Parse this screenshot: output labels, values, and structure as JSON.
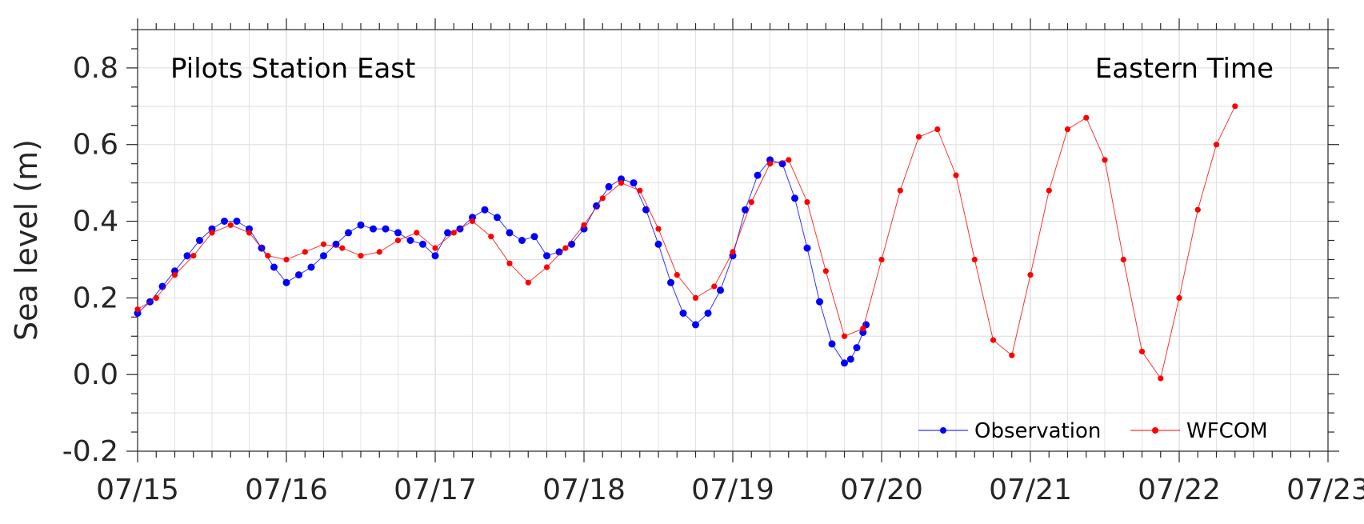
{
  "chart_data": {
    "type": "line",
    "title": "",
    "station": "Pilots Station East",
    "timezone": "Eastern Time",
    "xlabel": "",
    "ylabel": "Sea level (m)",
    "xlim": [
      "07/15",
      "07/23"
    ],
    "ylim": [
      -0.2,
      0.9
    ],
    "x_ticks": [
      "07/15",
      "07/16",
      "07/17",
      "07/18",
      "07/19",
      "07/20",
      "07/21",
      "07/22",
      "07/23"
    ],
    "y_ticks": [
      "-0.2",
      "0.0",
      "0.2",
      "0.4",
      "0.6",
      "0.8"
    ],
    "y_tick_values": [
      -0.2,
      0.0,
      0.2,
      0.4,
      0.6,
      0.8
    ],
    "grid": true,
    "legend_position": "bottom-right",
    "series": [
      {
        "name": "Observation",
        "color": "#0000ff",
        "marker": "dot",
        "points": [
          [
            "07/15 00:00",
            0.16
          ],
          [
            "07/15 02:00",
            0.19
          ],
          [
            "07/15 04:00",
            0.23
          ],
          [
            "07/15 06:00",
            0.27
          ],
          [
            "07/15 08:00",
            0.31
          ],
          [
            "07/15 10:00",
            0.35
          ],
          [
            "07/15 12:00",
            0.38
          ],
          [
            "07/15 14:00",
            0.4
          ],
          [
            "07/15 16:00",
            0.4
          ],
          [
            "07/15 18:00",
            0.38
          ],
          [
            "07/15 20:00",
            0.33
          ],
          [
            "07/15 22:00",
            0.28
          ],
          [
            "07/16 00:00",
            0.24
          ],
          [
            "07/16 02:00",
            0.26
          ],
          [
            "07/16 04:00",
            0.28
          ],
          [
            "07/16 06:00",
            0.31
          ],
          [
            "07/16 08:00",
            0.34
          ],
          [
            "07/16 10:00",
            0.37
          ],
          [
            "07/16 12:00",
            0.39
          ],
          [
            "07/16 14:00",
            0.38
          ],
          [
            "07/16 16:00",
            0.38
          ],
          [
            "07/16 18:00",
            0.37
          ],
          [
            "07/16 20:00",
            0.35
          ],
          [
            "07/16 22:00",
            0.34
          ],
          [
            "07/17 00:00",
            0.31
          ],
          [
            "07/17 02:00",
            0.37
          ],
          [
            "07/17 04:00",
            0.38
          ],
          [
            "07/17 06:00",
            0.41
          ],
          [
            "07/17 08:00",
            0.43
          ],
          [
            "07/17 10:00",
            0.41
          ],
          [
            "07/17 12:00",
            0.37
          ],
          [
            "07/17 14:00",
            0.35
          ],
          [
            "07/17 16:00",
            0.36
          ],
          [
            "07/17 18:00",
            0.31
          ],
          [
            "07/17 20:00",
            0.32
          ],
          [
            "07/17 22:00",
            0.34
          ],
          [
            "07/18 00:00",
            0.38
          ],
          [
            "07/18 02:00",
            0.44
          ],
          [
            "07/18 04:00",
            0.49
          ],
          [
            "07/18 06:00",
            0.51
          ],
          [
            "07/18 08:00",
            0.5
          ],
          [
            "07/18 10:00",
            0.43
          ],
          [
            "07/18 12:00",
            0.34
          ],
          [
            "07/18 14:00",
            0.24
          ],
          [
            "07/18 16:00",
            0.16
          ],
          [
            "07/18 18:00",
            0.13
          ],
          [
            "07/18 20:00",
            0.16
          ],
          [
            "07/18 22:00",
            0.22
          ],
          [
            "07/19 00:00",
            0.31
          ],
          [
            "07/19 02:00",
            0.43
          ],
          [
            "07/19 04:00",
            0.52
          ],
          [
            "07/19 06:00",
            0.56
          ],
          [
            "07/19 08:00",
            0.55
          ],
          [
            "07/19 10:00",
            0.46
          ],
          [
            "07/19 12:00",
            0.33
          ],
          [
            "07/19 14:00",
            0.19
          ],
          [
            "07/19 16:00",
            0.08
          ],
          [
            "07/19 18:00",
            0.03
          ],
          [
            "07/19 19:00",
            0.04
          ],
          [
            "07/19 20:00",
            0.07
          ],
          [
            "07/19 21:00",
            0.11
          ],
          [
            "07/19 21:30",
            0.13
          ]
        ]
      },
      {
        "name": "WFCOM",
        "color": "#ff0000",
        "marker": "dot",
        "points": [
          [
            "07/15 00:00",
            0.17
          ],
          [
            "07/15 03:00",
            0.2
          ],
          [
            "07/15 06:00",
            0.26
          ],
          [
            "07/15 09:00",
            0.31
          ],
          [
            "07/15 12:00",
            0.37
          ],
          [
            "07/15 15:00",
            0.39
          ],
          [
            "07/15 18:00",
            0.37
          ],
          [
            "07/15 21:00",
            0.31
          ],
          [
            "07/16 00:00",
            0.3
          ],
          [
            "07/16 03:00",
            0.32
          ],
          [
            "07/16 06:00",
            0.34
          ],
          [
            "07/16 09:00",
            0.33
          ],
          [
            "07/16 12:00",
            0.31
          ],
          [
            "07/16 15:00",
            0.32
          ],
          [
            "07/16 18:00",
            0.35
          ],
          [
            "07/16 21:00",
            0.37
          ],
          [
            "07/17 00:00",
            0.33
          ],
          [
            "07/17 03:00",
            0.37
          ],
          [
            "07/17 06:00",
            0.4
          ],
          [
            "07/17 09:00",
            0.36
          ],
          [
            "07/17 12:00",
            0.29
          ],
          [
            "07/17 15:00",
            0.24
          ],
          [
            "07/17 18:00",
            0.28
          ],
          [
            "07/17 21:00",
            0.33
          ],
          [
            "07/18 00:00",
            0.39
          ],
          [
            "07/18 03:00",
            0.46
          ],
          [
            "07/18 06:00",
            0.5
          ],
          [
            "07/18 09:00",
            0.48
          ],
          [
            "07/18 12:00",
            0.38
          ],
          [
            "07/18 15:00",
            0.26
          ],
          [
            "07/18 18:00",
            0.2
          ],
          [
            "07/18 21:00",
            0.23
          ],
          [
            "07/19 00:00",
            0.32
          ],
          [
            "07/19 03:00",
            0.45
          ],
          [
            "07/19 06:00",
            0.55
          ],
          [
            "07/19 09:00",
            0.56
          ],
          [
            "07/19 12:00",
            0.45
          ],
          [
            "07/19 15:00",
            0.27
          ],
          [
            "07/19 18:00",
            0.1
          ],
          [
            "07/19 21:00",
            0.12
          ],
          [
            "07/20 00:00",
            0.3
          ],
          [
            "07/20 03:00",
            0.48
          ],
          [
            "07/20 06:00",
            0.62
          ],
          [
            "07/20 09:00",
            0.64
          ],
          [
            "07/20 12:00",
            0.52
          ],
          [
            "07/20 15:00",
            0.3
          ],
          [
            "07/20 18:00",
            0.09
          ],
          [
            "07/20 21:00",
            0.05
          ],
          [
            "07/21 00:00",
            0.26
          ],
          [
            "07/21 03:00",
            0.48
          ],
          [
            "07/21 06:00",
            0.64
          ],
          [
            "07/21 09:00",
            0.67
          ],
          [
            "07/21 12:00",
            0.56
          ],
          [
            "07/21 15:00",
            0.3
          ],
          [
            "07/21 18:00",
            0.06
          ],
          [
            "07/21 21:00",
            -0.01
          ],
          [
            "07/22 00:00",
            0.2
          ],
          [
            "07/22 03:00",
            0.43
          ],
          [
            "07/22 06:00",
            0.6
          ],
          [
            "07/22 09:00",
            0.7
          ]
        ]
      }
    ]
  }
}
